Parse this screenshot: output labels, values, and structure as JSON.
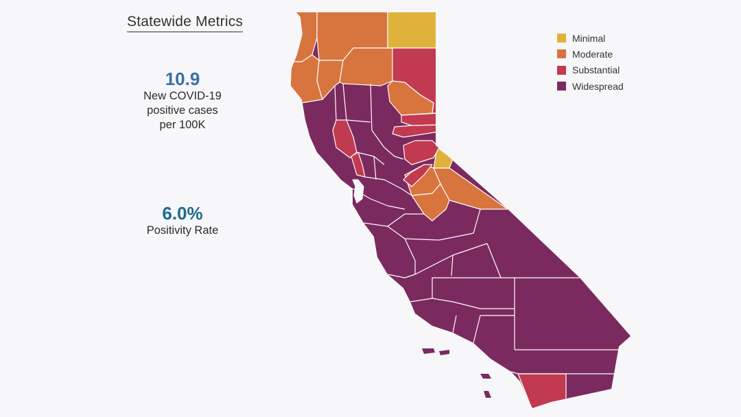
{
  "title": "Statewide Metrics",
  "metrics": [
    {
      "value": "10.9",
      "label_lines": [
        "New COVID-19",
        "positive cases",
        "per 100K"
      ]
    },
    {
      "value": "6.0%",
      "label_lines": [
        "Positivity Rate"
      ]
    }
  ],
  "legend": [
    {
      "label": "Minimal",
      "color": "#dfb23b"
    },
    {
      "label": "Moderate",
      "color": "#d8743e"
    },
    {
      "label": "Substantial",
      "color": "#c23a4f"
    },
    {
      "label": "Widespread",
      "color": "#7b2a5f"
    }
  ]
}
